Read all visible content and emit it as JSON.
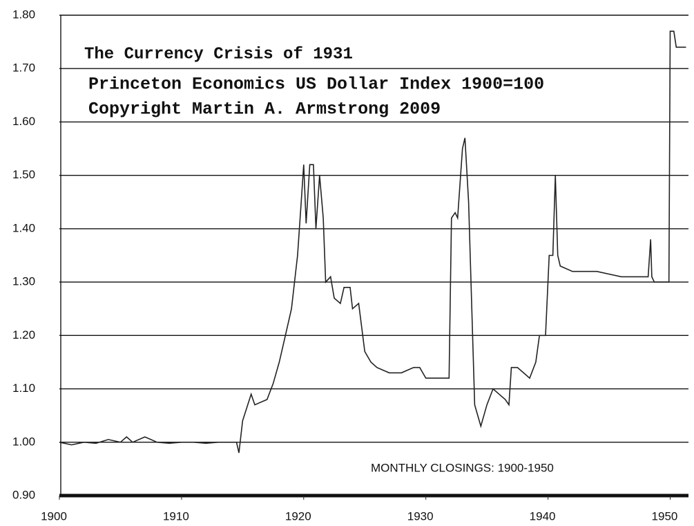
{
  "chart_data": {
    "type": "line",
    "title": "The Currency Crisis of 1931",
    "subtitle": [
      "Princeton Economics US Dollar Index 1900=100",
      "Copyright Martin A. Armstrong 2009"
    ],
    "annotation": "MONTHLY CLOSINGS: 1900-1950",
    "color": "#222222",
    "grid": true,
    "xlim": [
      1900,
      1951.5
    ],
    "xticks": [
      1900,
      1910,
      1920,
      1930,
      1940,
      1950
    ],
    "ylim": [
      0.9,
      1.8
    ],
    "yticks": [
      {
        "value": 0.9,
        "label": "0.90"
      },
      {
        "value": 1.0,
        "label": "1.00"
      },
      {
        "value": 1.1,
        "label": "1.10"
      },
      {
        "value": 1.2,
        "label": "1.20"
      },
      {
        "value": 1.3,
        "label": "1.30"
      },
      {
        "value": 1.4,
        "label": "1.40"
      },
      {
        "value": 1.5,
        "label": "1.50"
      },
      {
        "value": 1.6,
        "label": "1.60"
      },
      {
        "value": 1.7,
        "label": "1.70"
      },
      {
        "value": 1.8,
        "label": "1.80"
      }
    ],
    "x": [
      1900,
      1901,
      1902,
      1903,
      1904,
      1905,
      1905.5,
      1906,
      1907,
      1908,
      1909,
      1910,
      1911,
      1912,
      1913,
      1914,
      1914.5,
      1914.7,
      1915,
      1915.7,
      1916,
      1917,
      1917.5,
      1918,
      1918.5,
      1919,
      1919.5,
      1919.8,
      1920,
      1920.2,
      1920.5,
      1920.8,
      1921,
      1921.3,
      1921.6,
      1921.8,
      1922.2,
      1922.5,
      1923,
      1923.3,
      1923.8,
      1924,
      1924.5,
      1925,
      1925.5,
      1926,
      1927,
      1928,
      1929,
      1929.5,
      1930,
      1931.9,
      1932.1,
      1932.4,
      1932.6,
      1933,
      1933.2,
      1933.5,
      1934,
      1934.5,
      1935,
      1935.5,
      1936,
      1936.5,
      1936.8,
      1937,
      1937.5,
      1938,
      1938.5,
      1939,
      1939.3,
      1939.8,
      1940.1,
      1940.4,
      1940.6,
      1940.8,
      1941,
      1942,
      1944,
      1946,
      1947,
      1948.2,
      1948.4,
      1948.5,
      1948.7,
      1949.9,
      1950,
      1950.3,
      1950.5,
      1951.3
    ],
    "values": [
      1.0,
      0.995,
      1.0,
      0.998,
      1.005,
      1.0,
      1.01,
      1.0,
      1.01,
      1.0,
      0.998,
      1.0,
      1.0,
      0.998,
      1.0,
      1.0,
      1.0,
      0.98,
      1.04,
      1.09,
      1.07,
      1.08,
      1.11,
      1.15,
      1.2,
      1.25,
      1.35,
      1.45,
      1.52,
      1.41,
      1.52,
      1.52,
      1.4,
      1.5,
      1.42,
      1.3,
      1.31,
      1.27,
      1.26,
      1.29,
      1.29,
      1.25,
      1.26,
      1.17,
      1.15,
      1.14,
      1.13,
      1.13,
      1.14,
      1.14,
      1.12,
      1.12,
      1.42,
      1.43,
      1.42,
      1.55,
      1.57,
      1.45,
      1.07,
      1.03,
      1.07,
      1.1,
      1.09,
      1.08,
      1.07,
      1.14,
      1.14,
      1.13,
      1.12,
      1.15,
      1.2,
      1.2,
      1.35,
      1.35,
      1.5,
      1.35,
      1.33,
      1.32,
      1.32,
      1.31,
      1.31,
      1.31,
      1.38,
      1.31,
      1.3,
      1.3,
      1.77,
      1.77,
      1.74,
      1.74
    ]
  }
}
